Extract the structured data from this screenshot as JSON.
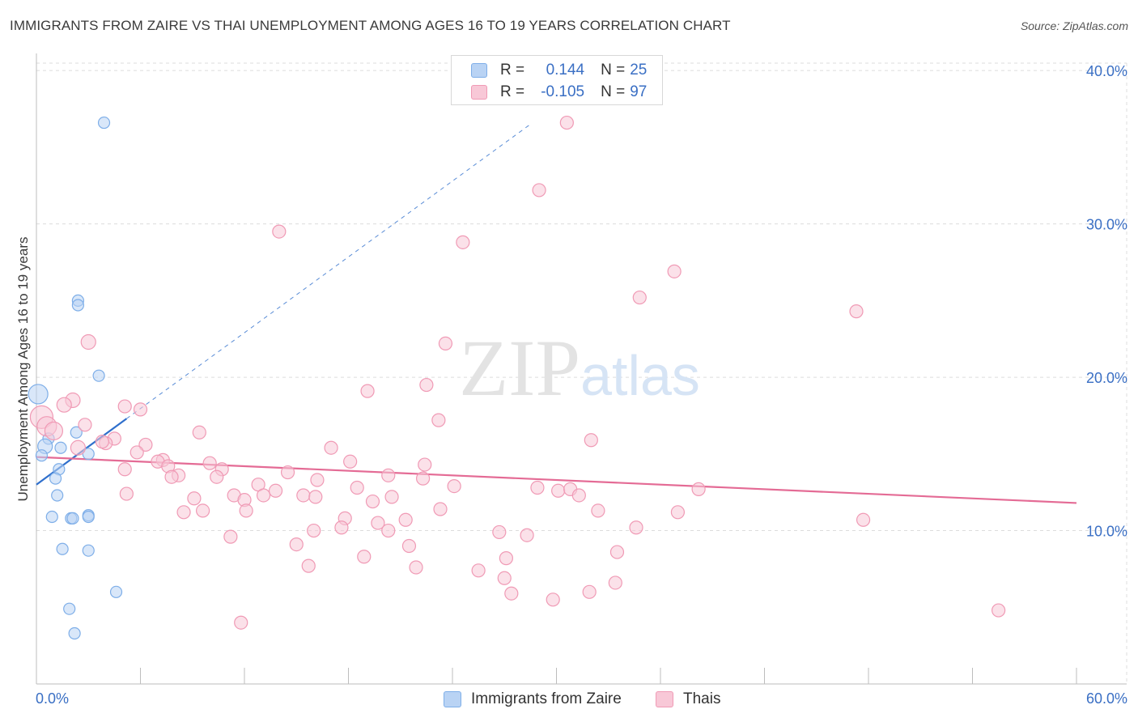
{
  "chart_data": {
    "type": "scatter",
    "title": "IMMIGRANTS FROM ZAIRE VS THAI UNEMPLOYMENT AMONG AGES 16 TO 19 YEARS CORRELATION CHART",
    "source": "Source: ZipAtlas.com",
    "xlabel": "",
    "ylabel": "Unemployment Among Ages 16 to 19 years",
    "xlim": [
      0,
      60
    ],
    "ylim": [
      0,
      40.8
    ],
    "x_tick_labels": [
      "0.0%",
      "60.0%"
    ],
    "y_ticks": [
      10,
      20,
      30,
      40
    ],
    "y_tick_labels": [
      "10.0%",
      "20.0%",
      "30.0%",
      "40.0%"
    ],
    "grid": true,
    "watermark": "ZIPatlas",
    "legend": {
      "rows": [
        {
          "r_label": "R =",
          "r_value": "0.144",
          "n_label": "N =",
          "n_value": "25"
        },
        {
          "r_label": "R =",
          "r_value": "-0.105",
          "n_label": "N =",
          "n_value": "97"
        }
      ]
    },
    "series": [
      {
        "name": "Immigrants from Zaire",
        "color": "#7eaee8",
        "fill": "#b9d3f4",
        "trend": {
          "x0": 0,
          "y0": 13.0,
          "x1": 5.2,
          "y1": 17.3,
          "dash_to": {
            "x": 28.5,
            "y": 36.5
          },
          "color": "#2f6fcc"
        },
        "points": [
          {
            "x": 3.9,
            "y": 36.6,
            "s": 7
          },
          {
            "x": 2.4,
            "y": 25.0,
            "s": 7
          },
          {
            "x": 2.4,
            "y": 24.7,
            "s": 7
          },
          {
            "x": 3.6,
            "y": 20.1,
            "s": 7
          },
          {
            "x": 0.1,
            "y": 18.9,
            "s": 12
          },
          {
            "x": 2.3,
            "y": 16.4,
            "s": 7
          },
          {
            "x": 0.7,
            "y": 16.0,
            "s": 7
          },
          {
            "x": 0.5,
            "y": 15.5,
            "s": 9
          },
          {
            "x": 1.4,
            "y": 15.4,
            "s": 7
          },
          {
            "x": 0.3,
            "y": 14.9,
            "s": 7
          },
          {
            "x": 3.0,
            "y": 15.0,
            "s": 7
          },
          {
            "x": 1.3,
            "y": 14.0,
            "s": 7
          },
          {
            "x": 1.1,
            "y": 13.4,
            "s": 7
          },
          {
            "x": 1.2,
            "y": 12.3,
            "s": 7
          },
          {
            "x": 0.9,
            "y": 10.9,
            "s": 7
          },
          {
            "x": 3.0,
            "y": 11.0,
            "s": 7
          },
          {
            "x": 3.0,
            "y": 10.9,
            "s": 7
          },
          {
            "x": 2.0,
            "y": 10.8,
            "s": 7
          },
          {
            "x": 2.1,
            "y": 10.8,
            "s": 7
          },
          {
            "x": 1.5,
            "y": 8.8,
            "s": 7
          },
          {
            "x": 3.0,
            "y": 8.7,
            "s": 7
          },
          {
            "x": 4.6,
            "y": 6.0,
            "s": 7
          },
          {
            "x": 1.9,
            "y": 4.9,
            "s": 7
          },
          {
            "x": 2.2,
            "y": 3.3,
            "s": 7
          }
        ]
      },
      {
        "name": "Thais",
        "color": "#f09ab5",
        "fill": "#f8c8d7",
        "trend": {
          "x0": 0,
          "y0": 14.8,
          "x1": 60,
          "y1": 11.8,
          "color": "#e46b95"
        },
        "points": [
          {
            "x": 30.6,
            "y": 36.6
          },
          {
            "x": 29.0,
            "y": 32.2
          },
          {
            "x": 14.0,
            "y": 29.5
          },
          {
            "x": 24.6,
            "y": 28.8
          },
          {
            "x": 36.8,
            "y": 26.9
          },
          {
            "x": 34.8,
            "y": 25.2
          },
          {
            "x": 47.3,
            "y": 24.3
          },
          {
            "x": 3.0,
            "y": 22.3,
            "s": 9
          },
          {
            "x": 23.6,
            "y": 22.2
          },
          {
            "x": 22.5,
            "y": 19.5
          },
          {
            "x": 19.1,
            "y": 19.1
          },
          {
            "x": 2.1,
            "y": 18.5,
            "s": 9
          },
          {
            "x": 5.1,
            "y": 18.1,
            "s": 8
          },
          {
            "x": 6.0,
            "y": 17.9
          },
          {
            "x": 1.6,
            "y": 18.2,
            "s": 9
          },
          {
            "x": 0.3,
            "y": 17.4,
            "s": 14
          },
          {
            "x": 0.6,
            "y": 16.8,
            "s": 12
          },
          {
            "x": 1.0,
            "y": 16.5,
            "s": 11
          },
          {
            "x": 2.8,
            "y": 16.9
          },
          {
            "x": 23.2,
            "y": 17.2
          },
          {
            "x": 9.4,
            "y": 16.4
          },
          {
            "x": 4.5,
            "y": 16.0,
            "s": 8
          },
          {
            "x": 4.0,
            "y": 15.7
          },
          {
            "x": 3.8,
            "y": 15.8
          },
          {
            "x": 6.3,
            "y": 15.6
          },
          {
            "x": 2.4,
            "y": 15.4,
            "s": 9
          },
          {
            "x": 17.0,
            "y": 15.4
          },
          {
            "x": 32.0,
            "y": 15.9
          },
          {
            "x": 5.8,
            "y": 15.1
          },
          {
            "x": 7.3,
            "y": 14.6
          },
          {
            "x": 7.0,
            "y": 14.5
          },
          {
            "x": 10.0,
            "y": 14.4
          },
          {
            "x": 18.1,
            "y": 14.5
          },
          {
            "x": 7.6,
            "y": 14.2
          },
          {
            "x": 10.7,
            "y": 14.0
          },
          {
            "x": 22.4,
            "y": 14.3
          },
          {
            "x": 5.1,
            "y": 14.0
          },
          {
            "x": 14.5,
            "y": 13.8
          },
          {
            "x": 20.3,
            "y": 13.6
          },
          {
            "x": 8.2,
            "y": 13.6
          },
          {
            "x": 7.8,
            "y": 13.5
          },
          {
            "x": 10.4,
            "y": 13.5
          },
          {
            "x": 16.2,
            "y": 13.3
          },
          {
            "x": 22.3,
            "y": 13.4
          },
          {
            "x": 12.8,
            "y": 13.0
          },
          {
            "x": 18.5,
            "y": 12.8
          },
          {
            "x": 24.1,
            "y": 12.9
          },
          {
            "x": 28.9,
            "y": 12.8
          },
          {
            "x": 30.1,
            "y": 12.6
          },
          {
            "x": 30.8,
            "y": 12.7
          },
          {
            "x": 38.2,
            "y": 12.7
          },
          {
            "x": 13.8,
            "y": 12.6
          },
          {
            "x": 13.1,
            "y": 12.3
          },
          {
            "x": 5.2,
            "y": 12.4
          },
          {
            "x": 11.4,
            "y": 12.3
          },
          {
            "x": 15.4,
            "y": 12.3
          },
          {
            "x": 16.1,
            "y": 12.2
          },
          {
            "x": 20.5,
            "y": 12.2
          },
          {
            "x": 31.3,
            "y": 12.3
          },
          {
            "x": 9.1,
            "y": 12.1
          },
          {
            "x": 12.0,
            "y": 12.0
          },
          {
            "x": 19.4,
            "y": 11.9
          },
          {
            "x": 8.5,
            "y": 11.2
          },
          {
            "x": 9.6,
            "y": 11.3
          },
          {
            "x": 12.1,
            "y": 11.3
          },
          {
            "x": 23.3,
            "y": 11.4
          },
          {
            "x": 32.4,
            "y": 11.3
          },
          {
            "x": 37.0,
            "y": 11.2
          },
          {
            "x": 17.8,
            "y": 10.8
          },
          {
            "x": 21.3,
            "y": 10.7
          },
          {
            "x": 19.7,
            "y": 10.5
          },
          {
            "x": 47.7,
            "y": 10.7
          },
          {
            "x": 17.6,
            "y": 10.2
          },
          {
            "x": 34.6,
            "y": 10.2
          },
          {
            "x": 16.0,
            "y": 10.0
          },
          {
            "x": 20.3,
            "y": 10.0
          },
          {
            "x": 26.7,
            "y": 9.9
          },
          {
            "x": 28.3,
            "y": 9.7
          },
          {
            "x": 11.2,
            "y": 9.6
          },
          {
            "x": 15.0,
            "y": 9.1
          },
          {
            "x": 21.5,
            "y": 9.0
          },
          {
            "x": 33.5,
            "y": 8.6
          },
          {
            "x": 18.9,
            "y": 8.3
          },
          {
            "x": 27.1,
            "y": 8.2
          },
          {
            "x": 15.7,
            "y": 7.7
          },
          {
            "x": 21.9,
            "y": 7.6
          },
          {
            "x": 25.5,
            "y": 7.4
          },
          {
            "x": 27.0,
            "y": 6.9
          },
          {
            "x": 33.4,
            "y": 6.6
          },
          {
            "x": 31.9,
            "y": 6.0
          },
          {
            "x": 27.4,
            "y": 5.9
          },
          {
            "x": 29.8,
            "y": 5.5
          },
          {
            "x": 55.5,
            "y": 4.8
          },
          {
            "x": 11.8,
            "y": 4.0
          }
        ]
      }
    ]
  }
}
